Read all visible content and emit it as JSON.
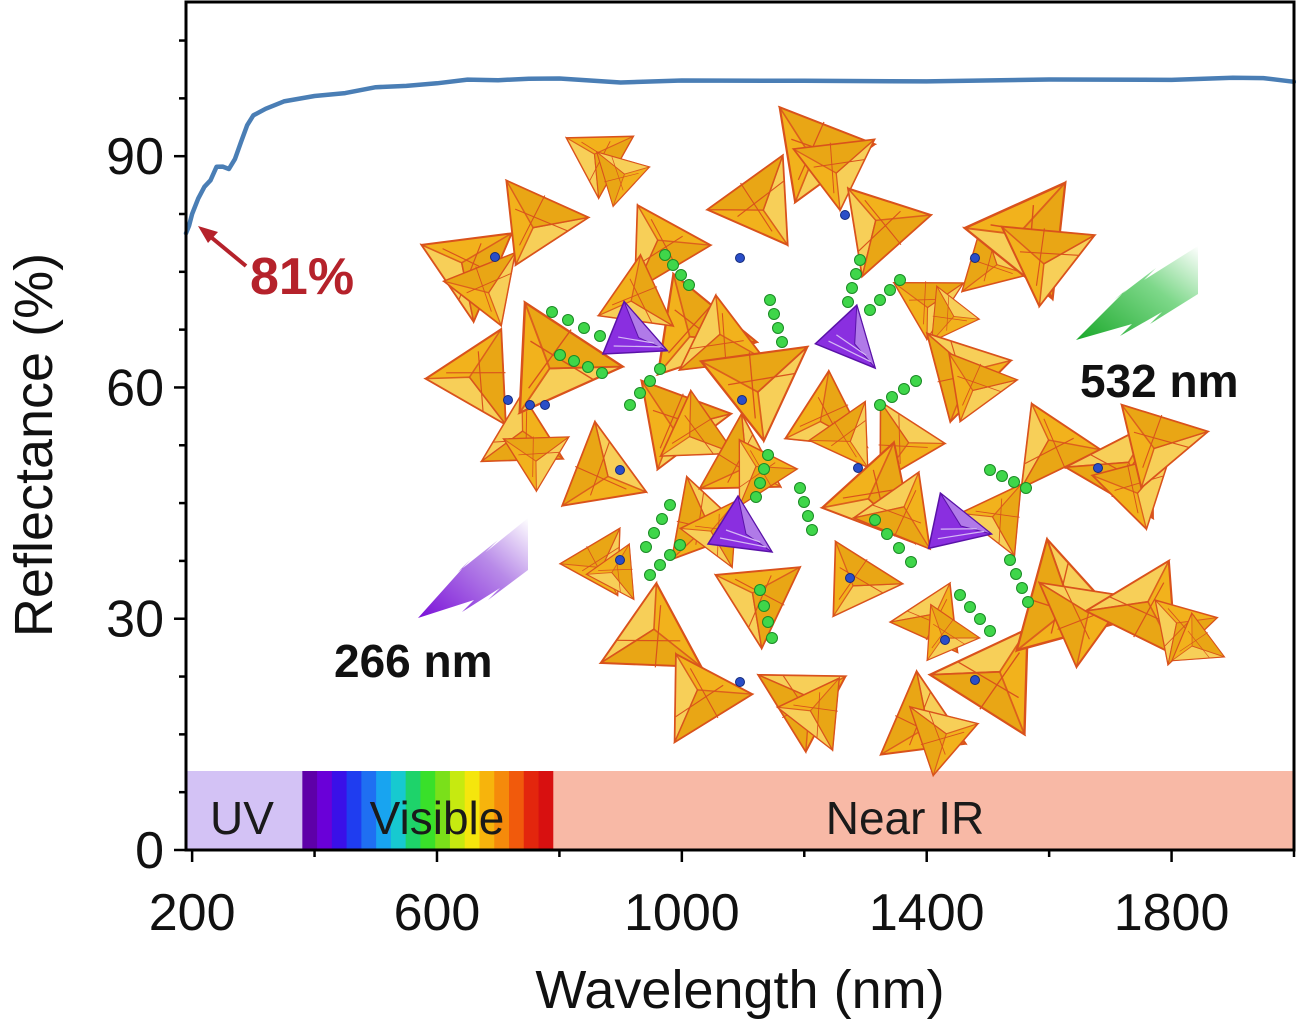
{
  "chart_data": {
    "type": "line",
    "xlabel": "Wavelength (nm)",
    "ylabel": "Reflectance (%)",
    "xlim": [
      190,
      2000
    ],
    "ylim": [
      0,
      110
    ],
    "x_ticks": [
      200,
      600,
      1000,
      1400,
      1800
    ],
    "y_ticks": [
      0,
      30,
      60,
      90
    ],
    "grid": false,
    "series": [
      {
        "color": "#4a7eb5",
        "x": [
          190,
          195,
          200,
          210,
          220,
          230,
          240,
          250,
          260,
          270,
          280,
          290,
          300,
          320,
          350,
          400,
          450,
          500,
          550,
          600,
          650,
          700,
          750,
          800,
          900,
          1000,
          1200,
          1400,
          1600,
          1800,
          1900,
          1950,
          2000
        ],
        "y": [
          80,
          81,
          82.5,
          84.5,
          86,
          87,
          88.5,
          88.7,
          88.4,
          89.5,
          92,
          94,
          95.2,
          96.3,
          97,
          97.8,
          98.3,
          98.8,
          99.2,
          99.5,
          99.8,
          100,
          100,
          100,
          99.7,
          99.7,
          99.8,
          99.8,
          99.8,
          100,
          100.2,
          100,
          99.8
        ]
      }
    ],
    "regions": [
      {
        "label": "UV",
        "from": 190,
        "to": 380,
        "color": "#d3c2f5"
      },
      {
        "label": "Visible",
        "from": 380,
        "to": 790,
        "colors": [
          "#5e00a8",
          "#6a00d8",
          "#3a10e8",
          "#1f3df0",
          "#1f6ff2",
          "#18a4f0",
          "#17c9d0",
          "#1ed36a",
          "#39e02a",
          "#7ae01a",
          "#c6ea10",
          "#f5e60d",
          "#f7b40c",
          "#f58a0b",
          "#f15a0c",
          "#e3260d",
          "#d81010"
        ]
      },
      {
        "label": "Near IR",
        "from": 790,
        "to": 2000,
        "color": "#f8b9a6"
      }
    ],
    "annotations": [
      {
        "text": "81%",
        "color": "#b5222b",
        "x": 200,
        "y": 81
      },
      {
        "text": "266 nm",
        "color": "#111111"
      },
      {
        "text": "532 nm",
        "color": "#111111"
      }
    ]
  }
}
